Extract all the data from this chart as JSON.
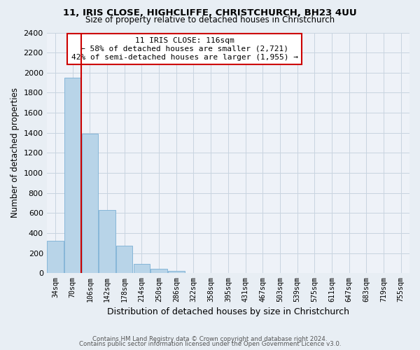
{
  "title1": "11, IRIS CLOSE, HIGHCLIFFE, CHRISTCHURCH, BH23 4UU",
  "title2": "Size of property relative to detached houses in Christchurch",
  "xlabel": "Distribution of detached houses by size in Christchurch",
  "ylabel": "Number of detached properties",
  "bar_labels": [
    "34sqm",
    "70sqm",
    "106sqm",
    "142sqm",
    "178sqm",
    "214sqm",
    "250sqm",
    "286sqm",
    "322sqm",
    "358sqm",
    "395sqm",
    "431sqm",
    "467sqm",
    "503sqm",
    "539sqm",
    "575sqm",
    "611sqm",
    "647sqm",
    "683sqm",
    "719sqm",
    "755sqm"
  ],
  "bar_values": [
    320,
    1950,
    1390,
    630,
    275,
    95,
    45,
    25,
    0,
    0,
    0,
    0,
    0,
    0,
    0,
    0,
    0,
    0,
    0,
    0,
    0
  ],
  "bar_color": "#b8d4e8",
  "bar_edge_color": "#7aafd4",
  "vline_color": "#cc0000",
  "annotation_title": "11 IRIS CLOSE: 116sqm",
  "annotation_line1": "← 58% of detached houses are smaller (2,721)",
  "annotation_line2": "42% of semi-detached houses are larger (1,955) →",
  "annotation_box_color": "#ffffff",
  "annotation_box_edge": "#cc0000",
  "ylim": [
    0,
    2400
  ],
  "yticks": [
    0,
    200,
    400,
    600,
    800,
    1000,
    1200,
    1400,
    1600,
    1800,
    2000,
    2200,
    2400
  ],
  "footer1": "Contains HM Land Registry data © Crown copyright and database right 2024.",
  "footer2": "Contains public sector information licensed under the Open Government Licence v3.0.",
  "bg_color": "#e8eef4",
  "plot_bg_color": "#eef2f8"
}
